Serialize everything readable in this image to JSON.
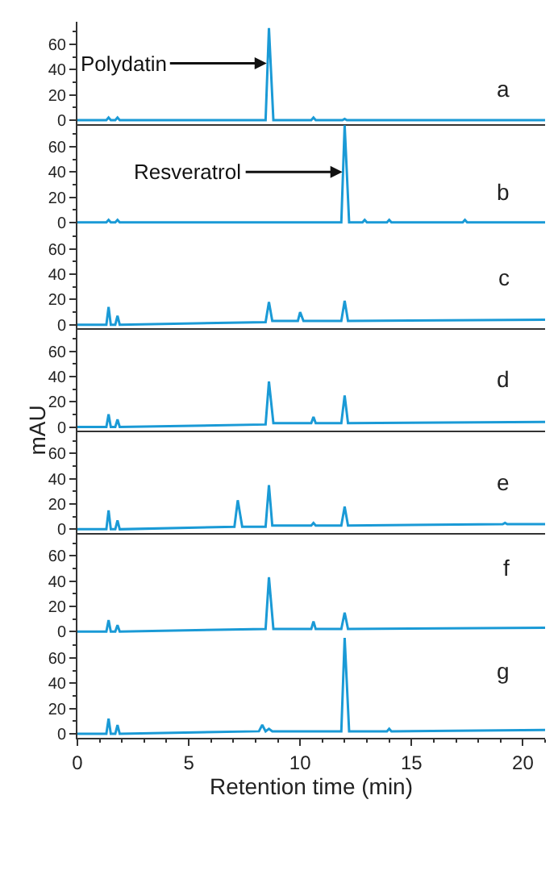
{
  "chart_data": [
    {
      "type": "line",
      "color": "#1a9ad6",
      "xlim": [
        0,
        21
      ],
      "ylim": [
        -3,
        78
      ],
      "yticks": [
        0,
        20,
        40,
        60
      ],
      "tick_labels": "y",
      "annotations": [
        {
          "text": "Polydatin",
          "x": 8.5,
          "y": 45
        },
        "a"
      ],
      "x": [
        0,
        1.3,
        1.4,
        1.5,
        1.7,
        1.8,
        1.9,
        8.45,
        8.6,
        8.8,
        10.5,
        10.6,
        10.7,
        11.9,
        12.0,
        12.1,
        21
      ],
      "values": [
        0,
        0,
        2,
        0,
        0,
        2,
        0,
        0,
        73,
        0,
        0,
        2,
        0,
        0,
        1,
        0,
        0
      ]
    },
    {
      "type": "line",
      "color": "#1a9ad6",
      "xlim": [
        0,
        21
      ],
      "ylim": [
        -3,
        78
      ],
      "yticks": [
        0,
        20,
        40,
        60
      ],
      "tick_labels": "y",
      "annotations": [
        {
          "text": "Resveratrol",
          "x": 11.9,
          "y": 40
        },
        "b"
      ],
      "x": [
        0,
        1.3,
        1.4,
        1.5,
        1.7,
        1.8,
        1.9,
        11.85,
        12.0,
        12.2,
        12.8,
        12.9,
        13.0,
        13.9,
        14.0,
        14.1,
        17.3,
        17.4,
        17.5,
        21
      ],
      "values": [
        0,
        0,
        2,
        0,
        0,
        2,
        0,
        0,
        77,
        0,
        0,
        2,
        0,
        0,
        2,
        0,
        0,
        2,
        0,
        0
      ]
    },
    {
      "type": "line",
      "color": "#1a9ad6",
      "xlim": [
        0,
        21
      ],
      "ylim": [
        -3,
        78
      ],
      "yticks": [
        0,
        20,
        40,
        60
      ],
      "tick_labels": "y",
      "annotations": [
        "c"
      ],
      "x": [
        0,
        1.3,
        1.4,
        1.5,
        1.7,
        1.8,
        1.9,
        8.45,
        8.6,
        8.75,
        9.9,
        10.0,
        10.15,
        11.85,
        12.0,
        12.15,
        21
      ],
      "values": [
        0,
        0,
        14,
        0,
        0,
        7,
        0,
        2,
        18,
        3,
        3,
        10,
        3,
        3,
        19,
        3,
        4
      ]
    },
    {
      "type": "line",
      "color": "#1a9ad6",
      "xlim": [
        0,
        21
      ],
      "ylim": [
        -3,
        78
      ],
      "yticks": [
        0,
        20,
        40,
        60
      ],
      "tick_labels": "y",
      "ylabel": "mAU",
      "annotations": [
        "d"
      ],
      "x": [
        0,
        1.3,
        1.4,
        1.5,
        1.7,
        1.8,
        1.9,
        8.45,
        8.6,
        8.8,
        10.5,
        10.6,
        10.7,
        11.85,
        12.0,
        12.15,
        21
      ],
      "values": [
        0,
        0,
        10,
        0,
        0,
        6,
        0,
        2,
        36,
        3,
        3,
        8,
        3,
        3,
        25,
        3,
        4
      ]
    },
    {
      "type": "line",
      "color": "#1a9ad6",
      "xlim": [
        0,
        21
      ],
      "ylim": [
        -3,
        78
      ],
      "yticks": [
        0,
        20,
        40,
        60
      ],
      "tick_labels": "y",
      "annotations": [
        "e"
      ],
      "x": [
        0,
        1.3,
        1.4,
        1.5,
        1.7,
        1.8,
        1.9,
        7.05,
        7.2,
        7.4,
        8.45,
        8.6,
        8.75,
        10.5,
        10.6,
        10.7,
        11.85,
        12.0,
        12.15,
        19.1,
        19.2,
        19.3,
        21
      ],
      "values": [
        0,
        0,
        15,
        0,
        0,
        7,
        0,
        2,
        23,
        2,
        2,
        35,
        3,
        3,
        5,
        3,
        3,
        18,
        3,
        4,
        5,
        4,
        4
      ]
    },
    {
      "type": "line",
      "color": "#1a9ad6",
      "xlim": [
        0,
        21
      ],
      "ylim": [
        -3,
        78
      ],
      "yticks": [
        0,
        20,
        40,
        60
      ],
      "tick_labels": "y",
      "annotations": [
        "f"
      ],
      "x": [
        0,
        1.3,
        1.4,
        1.5,
        1.7,
        1.8,
        1.9,
        8.45,
        8.6,
        8.8,
        10.5,
        10.6,
        10.7,
        11.85,
        12.0,
        12.15,
        21
      ],
      "values": [
        0,
        0,
        9,
        0,
        0,
        5,
        0,
        2,
        43,
        2,
        2,
        8,
        2,
        2,
        15,
        2,
        3
      ]
    },
    {
      "type": "line",
      "color": "#1a9ad6",
      "xlim": [
        0,
        21
      ],
      "ylim": [
        -3,
        78
      ],
      "yticks": [
        0,
        20,
        40,
        60
      ],
      "xticks": [
        0,
        5,
        10,
        15,
        20
      ],
      "xlabel": "Retention time (min)",
      "annotations": [
        "g"
      ],
      "x": [
        0,
        1.3,
        1.4,
        1.5,
        1.7,
        1.8,
        1.9,
        8.15,
        8.3,
        8.45,
        8.6,
        8.75,
        11.85,
        12.0,
        12.2,
        13.9,
        14.0,
        14.1,
        21
      ],
      "values": [
        0,
        0,
        12,
        0,
        0,
        7,
        0,
        2,
        7,
        2,
        4,
        2,
        2,
        76,
        2,
        2,
        4,
        2,
        3
      ]
    }
  ]
}
